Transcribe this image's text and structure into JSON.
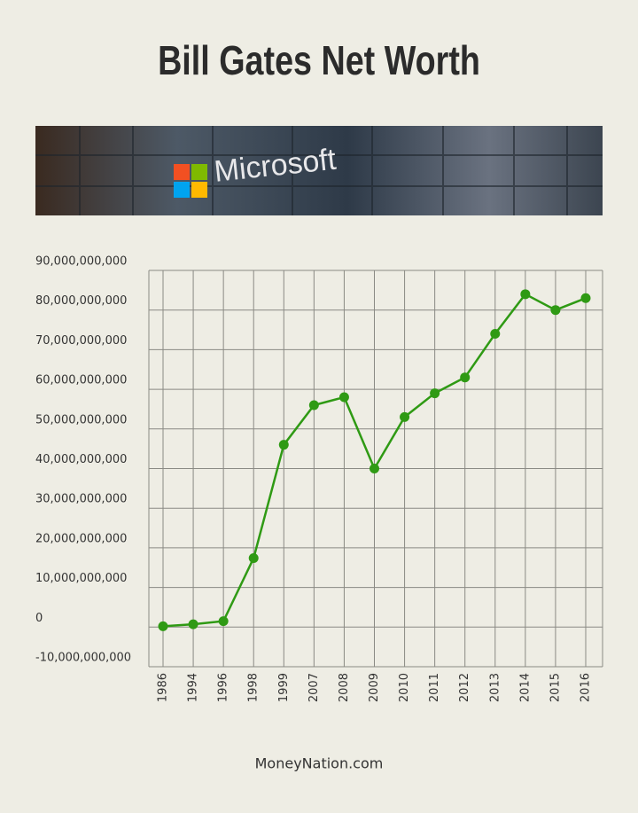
{
  "chart_data": {
    "type": "line",
    "title": "Bill Gates Net Worth",
    "banner_text": "Microsoft",
    "footer": "MoneyNation.com",
    "categories": [
      "1986",
      "1994",
      "1996",
      "1998",
      "1999",
      "2007",
      "2008",
      "2009",
      "2010",
      "2011",
      "2012",
      "2013",
      "2014",
      "2015",
      "2016"
    ],
    "series": [
      {
        "name": "Net Worth",
        "color": "#2f9a14",
        "values": [
          200000000,
          700000000,
          1500000000,
          17400000000,
          46000000000,
          56000000000,
          58000000000,
          40000000000,
          53000000000,
          59000000000,
          63000000000,
          74000000000,
          84000000000,
          80000000000,
          83000000000
        ]
      }
    ],
    "ylim": [
      -10000000000,
      90000000000
    ],
    "yticks": [
      {
        "value": -10000000000,
        "label": "-10,000,000,000"
      },
      0,
      {
        "value": 10000000000,
        "label": "10,000,000,000"
      },
      {
        "value": 20000000000,
        "label": "20,000,000,000"
      },
      {
        "value": 30000000000,
        "label": "30,000,000,000"
      },
      {
        "value": 40000000000,
        "label": "40,000,000,000"
      },
      {
        "value": 50000000000,
        "label": "50,000,000,000"
      },
      {
        "value": 60000000000,
        "label": "60,000,000,000"
      },
      {
        "value": 70000000000,
        "label": "70,000,000,000"
      },
      {
        "value": 80000000000,
        "label": "80,000,000,000"
      },
      {
        "value": 90000000000,
        "label": "90,000,000,000"
      }
    ],
    "grid": true
  }
}
